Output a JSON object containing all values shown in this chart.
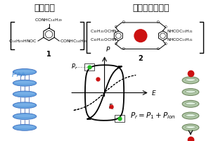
{
  "title_left": "強誘電性",
  "title_right": "イオンチャネル",
  "label_1": "1",
  "label_2": "2",
  "formula_bottom": "$P_r = P_1 + P_{ion}$",
  "bg_color": "#ffffff",
  "title_fontsize": 9,
  "chem_fontsize": 4.5,
  "blue_color": "#5599dd",
  "green_color": "#22bb22",
  "red_color": "#cc1111",
  "gray_color": "#999999",
  "dark_color": "#111111",
  "coil_face": "#b0c8a8",
  "coil_edge": "#708860",
  "coil_light": "#ddeedd"
}
